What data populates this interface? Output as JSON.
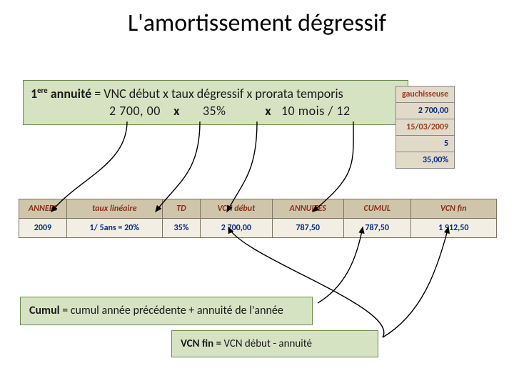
{
  "colors": {
    "formula_bg": "#d5e3c3",
    "formula_border": "#6b8a4a",
    "side_lbl_bg": "#dcd3bf",
    "side_val_bg": "#e2dac8",
    "header_bg": "#cfc5ab",
    "cell_bg": "#f2eee3",
    "header_text": "#8a2f18",
    "value_text": "#0a2a7a",
    "arrow": "#000000"
  },
  "title": "L'amortissement dégressif",
  "formula_top": {
    "prefix": "1",
    "sup": "ere",
    "after_sup": " annuité",
    "line1_rest": " = VNC début  x  taux dégressif x prorata temporis",
    "value_vnc": "2 700, 00",
    "x1": "x",
    "value_taux": "35%",
    "x2": "x",
    "value_prorata": "10 mois  / 12"
  },
  "side_table": {
    "rows": [
      {
        "label": "",
        "value": "gauchisseuse",
        "val_color": "#9a3b1f"
      },
      {
        "label": "",
        "value": "2 700,00"
      },
      {
        "label": "",
        "value": "15/03/2009",
        "val_color": "#9a3b1f"
      },
      {
        "label": "",
        "value": "5"
      },
      {
        "label": "",
        "value": "35,00%"
      }
    ]
  },
  "main_table": {
    "headers": [
      "ANNEES",
      "taux linéaire",
      "TD",
      "VCN début",
      "ANNUITES",
      "CUMUL",
      "VCN fin"
    ],
    "row": {
      "annee": "2009",
      "taux_lin": "1/ 5ans =      20%",
      "td": "35%",
      "vcn_debut": "2 700,00",
      "annuites": "787,50",
      "cumul": "787,50",
      "vcn_fin": "1 912,50"
    },
    "col_widths_pct": [
      10,
      20,
      8,
      15,
      15,
      14,
      18
    ]
  },
  "formula_cumul": {
    "bold": "Cumul ",
    "rest": "= cumul année précédente + annuité de l'année"
  },
  "formula_vcnfin": {
    "bold": "VCN fin = ",
    "rest": "VCN début - annuité"
  },
  "arrows": {
    "stroke_width": 1.4,
    "head_size": 6,
    "paths": [
      "M 178 170 C 178 230, 110 250, 72 296",
      "M 280 170 C 280 240, 250 255, 218 296",
      "M 360 170 C 360 240, 340 255, 318 296",
      "M 495 170 C 495 230, 500 245, 438 296",
      "M 445 424 C 485 400, 500 360, 508 318",
      "M 536 472 C 590 440, 612 380, 628 318",
      "M 536 472 C 560 430, 340 360, 320 318"
    ]
  }
}
